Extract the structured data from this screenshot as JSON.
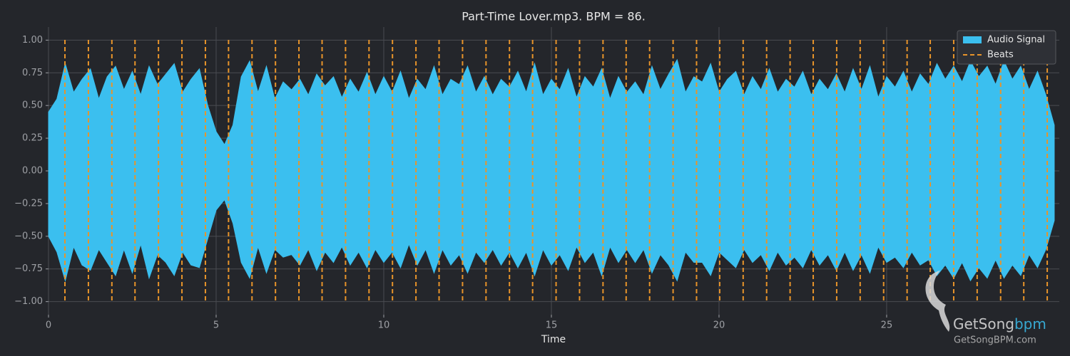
{
  "chart_data": {
    "type": "waveform",
    "title": "Part-Time Lover.mp3. BPM =  86.",
    "xlabel": "Time",
    "xlim": [
      0,
      30.15
    ],
    "xticks": [
      0,
      5,
      10,
      15,
      20,
      25
    ],
    "ylim": [
      -1.1,
      1.1
    ],
    "yticks": [
      {
        "value": -1,
        "label": "−1.00"
      },
      {
        "value": -0.75,
        "label": "−0.75"
      },
      {
        "value": -0.5,
        "label": "−0.50"
      },
      {
        "value": -0.25,
        "label": "−0.25"
      },
      {
        "value": 0,
        "label": "0.00"
      },
      {
        "value": 0.25,
        "label": "0.25"
      },
      {
        "value": 0.5,
        "label": "0.50"
      },
      {
        "value": 0.75,
        "label": "0.75"
      },
      {
        "value": 1,
        "label": "1.00"
      }
    ],
    "grid": true,
    "legend": "upper right",
    "series": [
      {
        "name": "Audio Signal",
        "color": "#3bbfef",
        "x": [
          0,
          0.25,
          0.5,
          0.75,
          1,
          1.25,
          1.5,
          1.75,
          2,
          2.25,
          2.5,
          2.75,
          3,
          3.25,
          3.5,
          3.75,
          4,
          4.25,
          4.5,
          4.75,
          5,
          5.25,
          5.5,
          5.75,
          6,
          6.25,
          6.5,
          6.75,
          7,
          7.25,
          7.5,
          7.75,
          8,
          8.25,
          8.5,
          8.75,
          9,
          9.25,
          9.5,
          9.75,
          10,
          10.25,
          10.5,
          10.75,
          11,
          11.25,
          11.5,
          11.75,
          12,
          12.25,
          12.5,
          12.75,
          13,
          13.25,
          13.5,
          13.75,
          14,
          14.25,
          14.5,
          14.75,
          15,
          15.25,
          15.5,
          15.75,
          16,
          16.25,
          16.5,
          16.75,
          17,
          17.25,
          17.5,
          17.75,
          18,
          18.25,
          18.5,
          18.75,
          19,
          19.25,
          19.5,
          19.75,
          20,
          20.25,
          20.5,
          20.75,
          21,
          21.25,
          21.5,
          21.75,
          22,
          22.25,
          22.5,
          22.75,
          23,
          23.25,
          23.5,
          23.75,
          24,
          24.25,
          24.5,
          24.75,
          25,
          25.25,
          25.5,
          25.75,
          26,
          26.25,
          26.5,
          26.75,
          27,
          27.25,
          27.5,
          27.75,
          28,
          28.25,
          28.5,
          28.75,
          29,
          29.25,
          29.5,
          29.75,
          30
        ],
        "upper": [
          0.45,
          0.55,
          0.82,
          0.6,
          0.7,
          0.78,
          0.55,
          0.72,
          0.8,
          0.62,
          0.76,
          0.58,
          0.8,
          0.66,
          0.74,
          0.82,
          0.6,
          0.7,
          0.78,
          0.5,
          0.3,
          0.2,
          0.35,
          0.72,
          0.84,
          0.6,
          0.8,
          0.55,
          0.68,
          0.62,
          0.7,
          0.58,
          0.74,
          0.65,
          0.72,
          0.56,
          0.7,
          0.6,
          0.75,
          0.58,
          0.72,
          0.6,
          0.76,
          0.55,
          0.7,
          0.62,
          0.8,
          0.58,
          0.7,
          0.66,
          0.8,
          0.6,
          0.72,
          0.58,
          0.7,
          0.64,
          0.76,
          0.6,
          0.82,
          0.58,
          0.7,
          0.62,
          0.78,
          0.56,
          0.72,
          0.64,
          0.78,
          0.55,
          0.72,
          0.6,
          0.68,
          0.58,
          0.8,
          0.62,
          0.74,
          0.85,
          0.6,
          0.72,
          0.68,
          0.82,
          0.6,
          0.7,
          0.76,
          0.58,
          0.72,
          0.62,
          0.78,
          0.6,
          0.7,
          0.64,
          0.76,
          0.58,
          0.7,
          0.62,
          0.74,
          0.6,
          0.78,
          0.62,
          0.8,
          0.56,
          0.72,
          0.64,
          0.76,
          0.6,
          0.74,
          0.66,
          0.82,
          0.7,
          0.8,
          0.68,
          0.84,
          0.72,
          0.8,
          0.66,
          0.84,
          0.7,
          0.8,
          0.62,
          0.76,
          0.58,
          0.35
        ],
        "lower": [
          -0.5,
          -0.62,
          -0.84,
          -0.58,
          -0.72,
          -0.76,
          -0.6,
          -0.7,
          -0.8,
          -0.6,
          -0.78,
          -0.56,
          -0.82,
          -0.64,
          -0.7,
          -0.8,
          -0.62,
          -0.72,
          -0.74,
          -0.52,
          -0.3,
          -0.22,
          -0.4,
          -0.7,
          -0.82,
          -0.58,
          -0.78,
          -0.6,
          -0.66,
          -0.64,
          -0.72,
          -0.6,
          -0.76,
          -0.62,
          -0.7,
          -0.58,
          -0.72,
          -0.62,
          -0.74,
          -0.6,
          -0.7,
          -0.62,
          -0.74,
          -0.56,
          -0.72,
          -0.6,
          -0.78,
          -0.6,
          -0.72,
          -0.64,
          -0.78,
          -0.62,
          -0.7,
          -0.6,
          -0.72,
          -0.62,
          -0.74,
          -0.62,
          -0.8,
          -0.6,
          -0.72,
          -0.64,
          -0.76,
          -0.58,
          -0.7,
          -0.62,
          -0.8,
          -0.58,
          -0.7,
          -0.6,
          -0.7,
          -0.6,
          -0.78,
          -0.64,
          -0.72,
          -0.84,
          -0.62,
          -0.7,
          -0.7,
          -0.8,
          -0.62,
          -0.68,
          -0.74,
          -0.6,
          -0.7,
          -0.64,
          -0.76,
          -0.62,
          -0.72,
          -0.66,
          -0.74,
          -0.6,
          -0.72,
          -0.64,
          -0.76,
          -0.62,
          -0.76,
          -0.64,
          -0.78,
          -0.58,
          -0.7,
          -0.66,
          -0.74,
          -0.62,
          -0.72,
          -0.68,
          -0.8,
          -0.72,
          -0.82,
          -0.7,
          -0.84,
          -0.74,
          -0.82,
          -0.68,
          -0.82,
          -0.72,
          -0.8,
          -0.64,
          -0.74,
          -0.6,
          -0.38
        ]
      },
      {
        "name": "Beats",
        "color": "#e8942a",
        "x": [
          0.49,
          1.19,
          1.89,
          2.58,
          3.28,
          3.98,
          4.68,
          5.37,
          6.07,
          6.77,
          7.47,
          8.16,
          8.86,
          9.56,
          10.26,
          10.96,
          11.65,
          12.35,
          13.05,
          13.75,
          14.44,
          15.14,
          15.84,
          16.54,
          17.23,
          17.93,
          18.63,
          19.33,
          20.02,
          20.72,
          21.42,
          22.12,
          22.81,
          23.51,
          24.21,
          24.91,
          25.61,
          26.3,
          27,
          27.7,
          28.4,
          29.09,
          29.79
        ]
      }
    ]
  },
  "watermark": {
    "brand": "GetSong",
    "brand_accent": "bpm",
    "url": "GetSongBPM.com"
  }
}
